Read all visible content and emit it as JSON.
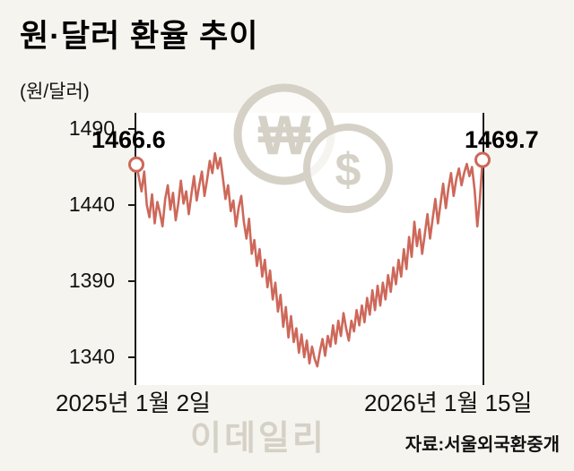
{
  "title": "원·달러 환율 추이",
  "unit_label": "(원/달러)",
  "annotations": {
    "start_value": "1466.6",
    "end_value": "1469.7"
  },
  "x_axis": {
    "start": "2025년 1월 2일",
    "end": "2026년 1월 15일"
  },
  "source": "자료:서울외국환중개",
  "watermark": "이데일리",
  "icons": {
    "won": "₩",
    "dollar": "$"
  },
  "colors": {
    "background": "#f6f4ee",
    "plot_background": "#ffffff",
    "line": "#cd685a",
    "axis": "#1a1a1a",
    "watermark": "#d5d1c6"
  },
  "chart_data": {
    "type": "line",
    "title": "원·달러 환율 추이",
    "ylabel": "원/달러",
    "ylim": [
      1340,
      1490
    ],
    "yticks": [
      1490,
      1440,
      1390,
      1340
    ],
    "x_tick_labels": [
      "2025년 1월 2일",
      "2026년 1월 15일"
    ],
    "start_value": 1466.6,
    "end_value": 1469.7,
    "legend": false,
    "grid": false,
    "values": [
      1466.6,
      1458,
      1449,
      1462,
      1440,
      1432,
      1447,
      1428,
      1442,
      1435,
      1426,
      1444,
      1453,
      1437,
      1448,
      1430,
      1441,
      1456,
      1441,
      1449,
      1434,
      1447,
      1459,
      1443,
      1453,
      1462,
      1446,
      1457,
      1469,
      1461,
      1474,
      1464,
      1471,
      1458,
      1444,
      1453,
      1436,
      1443,
      1426,
      1438,
      1446,
      1429,
      1418,
      1431,
      1408,
      1417,
      1400,
      1411,
      1393,
      1404,
      1386,
      1397,
      1378,
      1389,
      1370,
      1381,
      1360,
      1373,
      1353,
      1367,
      1350,
      1359,
      1343,
      1355,
      1340,
      1351,
      1336,
      1347,
      1339,
      1334,
      1344,
      1352,
      1341,
      1354,
      1347,
      1361,
      1349,
      1364,
      1354,
      1369,
      1359,
      1351,
      1364,
      1357,
      1371,
      1361,
      1374,
      1363,
      1379,
      1368,
      1384,
      1371,
      1387,
      1374,
      1389,
      1378,
      1394,
      1383,
      1399,
      1388,
      1404,
      1393,
      1411,
      1398,
      1419,
      1406,
      1429,
      1413,
      1424,
      1408,
      1421,
      1434,
      1418,
      1431,
      1444,
      1428,
      1441,
      1454,
      1438,
      1451,
      1461,
      1446,
      1457,
      1464,
      1453,
      1461,
      1467,
      1459,
      1465,
      1450,
      1426,
      1444,
      1469.7
    ]
  }
}
